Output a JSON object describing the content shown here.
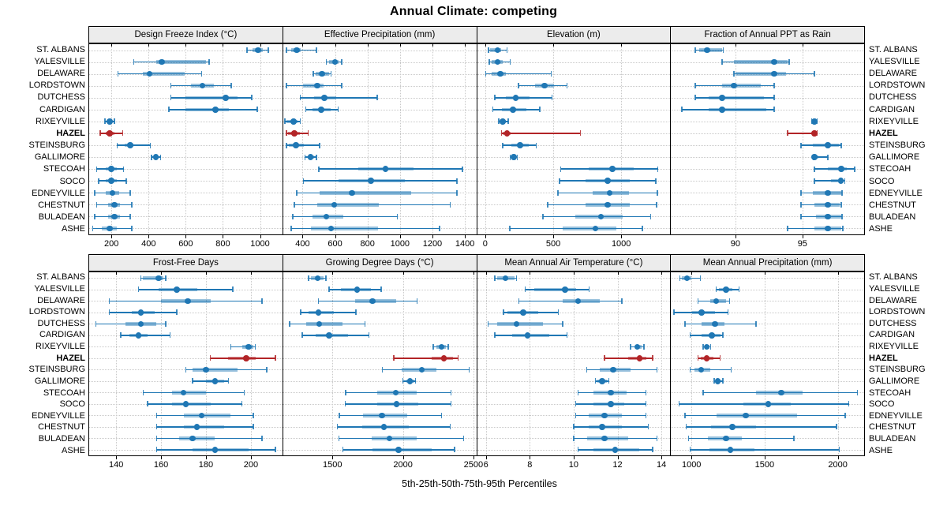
{
  "title": "Annual Climate: competing",
  "chart_data": {
    "type": "dotplot",
    "title": "Annual Climate: competing",
    "xlabel": "5th-25th-50th-75th-95th Percentiles",
    "percentiles": [
      5,
      25,
      50,
      75,
      95
    ],
    "legend_position": "none",
    "grid": "dotted",
    "highlight_site": "HAZEL",
    "sites": [
      "ST. ALBANS",
      "YALESVILLE",
      "DELAWARE",
      "LORDSTOWN",
      "DUTCHESS",
      "CARDIGAN",
      "RIXEYVILLE",
      "HAZEL",
      "STEINSBURG",
      "GALLIMORE",
      "STECOAH",
      "SOCO",
      "EDNEYVILLE",
      "CHESTNUT",
      "BULADEAN",
      "ASHE"
    ],
    "colors": {
      "site_normal": "#1f77b4",
      "band_normal": "rgba(31,119,180,0.45)",
      "site_highlight": "#b22427",
      "band_highlight": "rgba(178,36,39,0.5)",
      "strip_bg": "#ececec",
      "grid_line": "#c9c9c9"
    },
    "panels": [
      {
        "title": "Design Freeze Index (°C)",
        "row": 0,
        "col": 0,
        "xlim": [
          80,
          1120
        ],
        "ticks": [
          200,
          400,
          600,
          800,
          1000
        ],
        "data": [
          [
            930,
            960,
            990,
            1015,
            1045
          ],
          [
            320,
            440,
            470,
            710,
            725
          ],
          [
            235,
            370,
            405,
            595,
            685
          ],
          [
            520,
            630,
            690,
            750,
            845
          ],
          [
            520,
            600,
            815,
            880,
            955
          ],
          [
            510,
            600,
            760,
            830,
            985
          ],
          [
            165,
            180,
            190,
            205,
            215
          ],
          [
            140,
            170,
            190,
            215,
            260
          ],
          [
            230,
            270,
            300,
            320,
            410
          ],
          [
            415,
            430,
            440,
            450,
            465
          ],
          [
            120,
            170,
            200,
            230,
            265
          ],
          [
            130,
            170,
            200,
            230,
            280
          ],
          [
            110,
            170,
            205,
            240,
            300
          ],
          [
            120,
            180,
            215,
            245,
            310
          ],
          [
            110,
            180,
            215,
            245,
            300
          ],
          [
            100,
            150,
            190,
            230,
            310
          ]
        ]
      },
      {
        "title": "Effective Precipitation (mm)",
        "row": 0,
        "col": 1,
        "xlim": [
          280,
          1470
        ],
        "ticks": [
          400,
          600,
          800,
          1000,
          1200,
          1400
        ],
        "data": [
          [
            300,
            330,
            365,
            390,
            485
          ],
          [
            545,
            565,
            600,
            620,
            640
          ],
          [
            465,
            480,
            520,
            565,
            575
          ],
          [
            300,
            405,
            490,
            530,
            640
          ],
          [
            385,
            470,
            535,
            605,
            860
          ],
          [
            420,
            460,
            515,
            575,
            620
          ],
          [
            290,
            300,
            345,
            370,
            385
          ],
          [
            300,
            310,
            350,
            385,
            435
          ],
          [
            300,
            315,
            360,
            410,
            505
          ],
          [
            415,
            430,
            450,
            470,
            485
          ],
          [
            500,
            745,
            910,
            1085,
            1385
          ],
          [
            405,
            620,
            820,
            1030,
            1350
          ],
          [
            365,
            505,
            705,
            1070,
            1350
          ],
          [
            350,
            490,
            595,
            870,
            1310
          ],
          [
            340,
            460,
            545,
            650,
            985
          ],
          [
            330,
            450,
            575,
            865,
            1245
          ]
        ]
      },
      {
        "title": "Elevation (m)",
        "row": 0,
        "col": 2,
        "xlim": [
          -60,
          1360
        ],
        "ticks": [
          0,
          500,
          1000
        ],
        "data": [
          [
            25,
            35,
            90,
            115,
            160
          ],
          [
            30,
            45,
            90,
            130,
            185
          ],
          [
            5,
            50,
            110,
            150,
            485
          ],
          [
            245,
            365,
            435,
            505,
            600
          ],
          [
            70,
            150,
            225,
            325,
            490
          ],
          [
            55,
            120,
            205,
            300,
            400
          ],
          [
            100,
            110,
            130,
            150,
            170
          ],
          [
            120,
            130,
            160,
            185,
            700
          ],
          [
            130,
            190,
            255,
            320,
            375
          ],
          [
            185,
            190,
            210,
            225,
            235
          ],
          [
            555,
            760,
            935,
            1090,
            1270
          ],
          [
            545,
            735,
            900,
            1065,
            1255
          ],
          [
            535,
            790,
            915,
            1055,
            1265
          ],
          [
            460,
            740,
            900,
            1065,
            1260
          ],
          [
            425,
            665,
            850,
            1010,
            1215
          ],
          [
            180,
            570,
            810,
            965,
            1155
          ]
        ]
      },
      {
        "title": "Fraction of Annual PPT as Rain",
        "row": 0,
        "col": 3,
        "xlim": [
          85.2,
          99.6
        ],
        "ticks": [
          90,
          95
        ],
        "data": [
          [
            87.0,
            87.3,
            87.9,
            89.0,
            89.1
          ],
          [
            89.0,
            89.9,
            92.9,
            93.9,
            94.0
          ],
          [
            89.9,
            90.0,
            92.9,
            93.8,
            95.9
          ],
          [
            87.0,
            89.0,
            89.9,
            91.9,
            92.9
          ],
          [
            87.0,
            88.0,
            89.0,
            92.1,
            92.9
          ],
          [
            86.0,
            88.0,
            89.0,
            92.3,
            92.9
          ],
          [
            95.7,
            95.8,
            95.9,
            96.0,
            96.1
          ],
          [
            93.9,
            95.7,
            95.9,
            96.0,
            96.1
          ],
          [
            94.9,
            95.8,
            96.9,
            97.7,
            97.9
          ],
          [
            95.8,
            95.85,
            95.9,
            96.2,
            96.9
          ],
          [
            95.9,
            96.9,
            97.9,
            98.3,
            98.9
          ],
          [
            95.9,
            97.1,
            97.85,
            98.1,
            98.15
          ],
          [
            94.9,
            95.8,
            96.9,
            97.9,
            97.95
          ],
          [
            94.9,
            95.9,
            96.9,
            97.8,
            97.9
          ],
          [
            94.9,
            96.0,
            96.9,
            97.9,
            97.95
          ],
          [
            93.9,
            95.9,
            96.9,
            97.9,
            98.0
          ]
        ]
      },
      {
        "title": "Frost-Free Days",
        "row": 1,
        "col": 0,
        "xlim": [
          128,
          214
        ],
        "ticks": [
          140,
          160,
          180,
          200
        ],
        "data": [
          [
            151,
            152,
            159,
            161,
            162
          ],
          [
            150,
            159,
            167,
            176,
            192
          ],
          [
            137,
            160,
            172,
            182,
            205
          ],
          [
            137,
            147,
            151,
            157,
            167
          ],
          [
            131,
            144,
            151,
            158,
            162
          ],
          [
            142,
            146,
            150,
            154,
            164
          ],
          [
            191,
            196,
            199,
            201,
            202
          ],
          [
            182,
            190,
            198,
            202,
            211
          ],
          [
            171,
            174,
            180,
            194,
            207
          ],
          [
            174,
            180,
            184,
            188,
            190
          ],
          [
            152,
            165,
            170,
            180,
            197
          ],
          [
            154,
            165,
            171,
            182,
            196
          ],
          [
            158,
            170,
            178,
            191,
            201
          ],
          [
            158,
            170,
            176,
            188,
            201
          ],
          [
            158,
            168,
            174,
            184,
            205
          ],
          [
            158,
            174,
            184,
            199,
            211
          ]
        ]
      },
      {
        "title": "Growing Degree Days (°C)",
        "row": 1,
        "col": 1,
        "xlim": [
          1150,
          2520
        ],
        "ticks": [
          1500,
          2000,
          2500
        ],
        "data": [
          [
            1330,
            1345,
            1395,
            1435,
            1455
          ],
          [
            1475,
            1560,
            1675,
            1770,
            1845
          ],
          [
            1400,
            1660,
            1785,
            1950,
            2100
          ],
          [
            1275,
            1330,
            1400,
            1510,
            1665
          ],
          [
            1195,
            1315,
            1405,
            1570,
            1730
          ],
          [
            1285,
            1380,
            1475,
            1610,
            1760
          ],
          [
            2215,
            2235,
            2275,
            2305,
            2320
          ],
          [
            1935,
            2205,
            2290,
            2355,
            2390
          ],
          [
            1855,
            1990,
            2135,
            2235,
            2470
          ],
          [
            2000,
            2025,
            2050,
            2080,
            2090
          ],
          [
            1595,
            1815,
            1950,
            2100,
            2340
          ],
          [
            1590,
            1820,
            1955,
            2110,
            2340
          ],
          [
            1550,
            1715,
            1850,
            2030,
            2275
          ],
          [
            1535,
            1710,
            1865,
            2040,
            2335
          ],
          [
            1545,
            1780,
            1905,
            2100,
            2430
          ],
          [
            1575,
            1785,
            1970,
            2205,
            2365
          ]
        ]
      },
      {
        "title": "Mean Annual Air Temperature (°C)",
        "row": 1,
        "col": 2,
        "xlim": [
          5.6,
          14.4
        ],
        "ticks": [
          6,
          8,
          10,
          12,
          14
        ],
        "data": [
          [
            6.4,
            6.5,
            6.9,
            7.3,
            7.4
          ],
          [
            7.8,
            8.2,
            9.6,
            10.1,
            10.7
          ],
          [
            7.5,
            9.5,
            10.2,
            11.2,
            12.2
          ],
          [
            6.8,
            7.0,
            7.7,
            8.4,
            9.3
          ],
          [
            6.1,
            6.5,
            7.4,
            8.6,
            9.5
          ],
          [
            6.4,
            7.2,
            7.9,
            8.9,
            9.7
          ],
          [
            12.6,
            12.8,
            12.9,
            13.1,
            13.2
          ],
          [
            11.4,
            12.5,
            13.0,
            13.3,
            13.6
          ],
          [
            10.6,
            11.2,
            11.8,
            12.6,
            13.8
          ],
          [
            11.0,
            11.1,
            11.3,
            11.5,
            11.6
          ],
          [
            10.2,
            10.9,
            11.7,
            12.4,
            13.3
          ],
          [
            10.1,
            10.9,
            11.7,
            12.3,
            13.3
          ],
          [
            10.1,
            10.7,
            11.4,
            12.2,
            13.3
          ],
          [
            10.0,
            10.7,
            11.3,
            12.2,
            13.4
          ],
          [
            10.0,
            10.6,
            11.4,
            12.5,
            13.8
          ],
          [
            10.2,
            10.9,
            11.9,
            13.0,
            13.6
          ]
        ]
      },
      {
        "title": "Mean Annual Precipitation (mm)",
        "row": 1,
        "col": 3,
        "xlim": [
          860,
          2180
        ],
        "ticks": [
          1000,
          1500,
          2000
        ],
        "data": [
          [
            920,
            935,
            970,
            1000,
            1060
          ],
          [
            1170,
            1185,
            1235,
            1280,
            1325
          ],
          [
            1045,
            1130,
            1170,
            1235,
            1260
          ],
          [
            880,
            1005,
            1070,
            1160,
            1250
          ],
          [
            955,
            1070,
            1160,
            1225,
            1440
          ],
          [
            990,
            1070,
            1140,
            1200,
            1215
          ],
          [
            1080,
            1090,
            1105,
            1125,
            1130
          ],
          [
            1045,
            1065,
            1105,
            1150,
            1195
          ],
          [
            990,
            1020,
            1065,
            1130,
            1270
          ],
          [
            1155,
            1165,
            1180,
            1200,
            1215
          ],
          [
            1080,
            1440,
            1615,
            1760,
            2135
          ],
          [
            915,
            1355,
            1525,
            1680,
            2075
          ],
          [
            955,
            1170,
            1370,
            1720,
            2050
          ],
          [
            965,
            1135,
            1280,
            1440,
            1990
          ],
          [
            980,
            1110,
            1235,
            1345,
            1700
          ],
          [
            990,
            1125,
            1265,
            1430,
            2010
          ]
        ]
      }
    ]
  }
}
